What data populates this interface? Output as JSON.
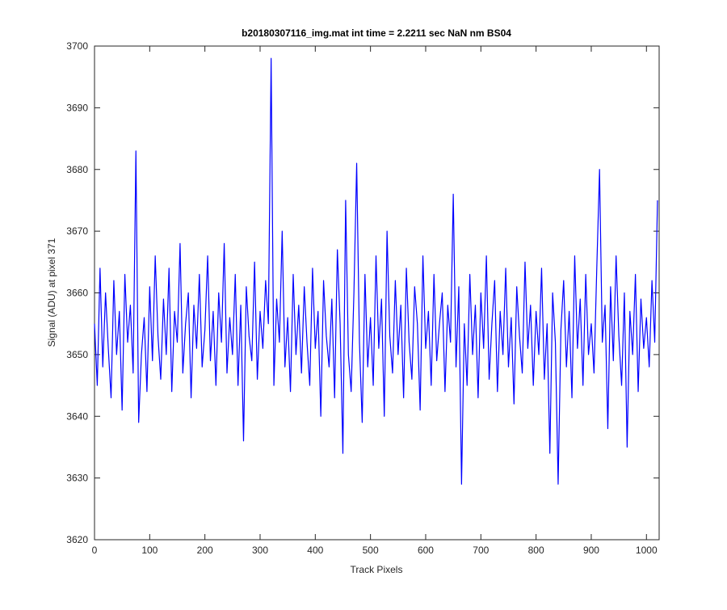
{
  "chart_data": {
    "type": "line",
    "title": "b20180307116_img.mat int time = 2.2211 sec  NaN nm BS04",
    "x_label": "Track Pixels",
    "y_label": "Signal (ADU) at pixel 371",
    "xlim": [
      0,
      1023
    ],
    "ylim": [
      3620,
      3700
    ],
    "xticks": [
      0,
      100,
      200,
      300,
      400,
      500,
      600,
      700,
      800,
      900,
      1000
    ],
    "yticks": [
      3620,
      3630,
      3640,
      3650,
      3660,
      3670,
      3680,
      3690,
      3700
    ],
    "x": [
      0,
      5,
      10,
      15,
      20,
      25,
      30,
      35,
      40,
      45,
      50,
      55,
      60,
      65,
      70,
      75,
      80,
      85,
      90,
      95,
      100,
      105,
      110,
      115,
      120,
      125,
      130,
      135,
      140,
      145,
      150,
      155,
      160,
      165,
      170,
      175,
      180,
      185,
      190,
      195,
      200,
      205,
      210,
      215,
      220,
      225,
      230,
      235,
      240,
      245,
      250,
      255,
      260,
      265,
      270,
      275,
      280,
      285,
      290,
      295,
      300,
      305,
      310,
      315,
      320,
      325,
      330,
      335,
      340,
      345,
      350,
      355,
      360,
      365,
      370,
      375,
      380,
      385,
      390,
      395,
      400,
      405,
      410,
      415,
      420,
      425,
      430,
      435,
      440,
      445,
      450,
      455,
      460,
      465,
      470,
      475,
      480,
      485,
      490,
      495,
      500,
      505,
      510,
      515,
      520,
      525,
      530,
      535,
      540,
      545,
      550,
      555,
      560,
      565,
      570,
      575,
      580,
      585,
      590,
      595,
      600,
      605,
      610,
      615,
      620,
      625,
      630,
      635,
      640,
      645,
      650,
      655,
      660,
      665,
      670,
      675,
      680,
      685,
      690,
      695,
      700,
      705,
      710,
      715,
      720,
      725,
      730,
      735,
      740,
      745,
      750,
      755,
      760,
      765,
      770,
      775,
      780,
      785,
      790,
      795,
      800,
      805,
      810,
      815,
      820,
      825,
      830,
      835,
      840,
      845,
      850,
      855,
      860,
      865,
      870,
      875,
      880,
      885,
      890,
      895,
      900,
      905,
      910,
      915,
      920,
      925,
      930,
      935,
      940,
      945,
      950,
      955,
      960,
      965,
      970,
      975,
      980,
      985,
      990,
      995,
      1000,
      1005,
      1010,
      1015,
      1020
    ],
    "series": [
      {
        "color": "#0000ff",
        "values": [
          3655,
          3645,
          3664,
          3648,
          3660,
          3651,
          3643,
          3662,
          3650,
          3657,
          3641,
          3663,
          3652,
          3658,
          3647,
          3683,
          3639,
          3650,
          3656,
          3644,
          3661,
          3649,
          3666,
          3653,
          3646,
          3659,
          3650,
          3664,
          3644,
          3657,
          3652,
          3668,
          3647,
          3655,
          3660,
          3643,
          3658,
          3651,
          3663,
          3648,
          3654,
          3666,
          3649,
          3657,
          3645,
          3660,
          3652,
          3668,
          3647,
          3656,
          3650,
          3663,
          3645,
          3658,
          3636,
          3661,
          3653,
          3649,
          3665,
          3646,
          3657,
          3651,
          3662,
          3655,
          3698,
          3645,
          3659,
          3652,
          3670,
          3648,
          3656,
          3644,
          3663,
          3650,
          3658,
          3647,
          3661,
          3652,
          3645,
          3664,
          3651,
          3657,
          3640,
          3662,
          3653,
          3648,
          3659,
          3643,
          3667,
          3655,
          3634,
          3675,
          3650,
          3644,
          3660,
          3681,
          3652,
          3639,
          3663,
          3648,
          3656,
          3645,
          3666,
          3651,
          3659,
          3640,
          3670,
          3653,
          3647,
          3662,
          3650,
          3658,
          3643,
          3664,
          3652,
          3646,
          3661,
          3655,
          3641,
          3666,
          3651,
          3657,
          3645,
          3663,
          3649,
          3655,
          3660,
          3644,
          3658,
          3652,
          3676,
          3648,
          3661,
          3629,
          3655,
          3645,
          3663,
          3650,
          3658,
          3643,
          3660,
          3651,
          3666,
          3646,
          3655,
          3662,
          3644,
          3657,
          3650,
          3664,
          3648,
          3656,
          3642,
          3661,
          3653,
          3647,
          3665,
          3651,
          3658,
          3645,
          3657,
          3650,
          3664,
          3646,
          3655,
          3634,
          3660,
          3652,
          3629,
          3654,
          3662,
          3648,
          3657,
          3643,
          3666,
          3651,
          3659,
          3645,
          3663,
          3650,
          3655,
          3647,
          3664,
          3680,
          3652,
          3658,
          3638,
          3661,
          3649,
          3666,
          3653,
          3645,
          3660,
          3635,
          3657,
          3650,
          3663,
          3644,
          3659,
          3651,
          3656,
          3648,
          3662,
          3652,
          3675
        ]
      }
    ]
  }
}
